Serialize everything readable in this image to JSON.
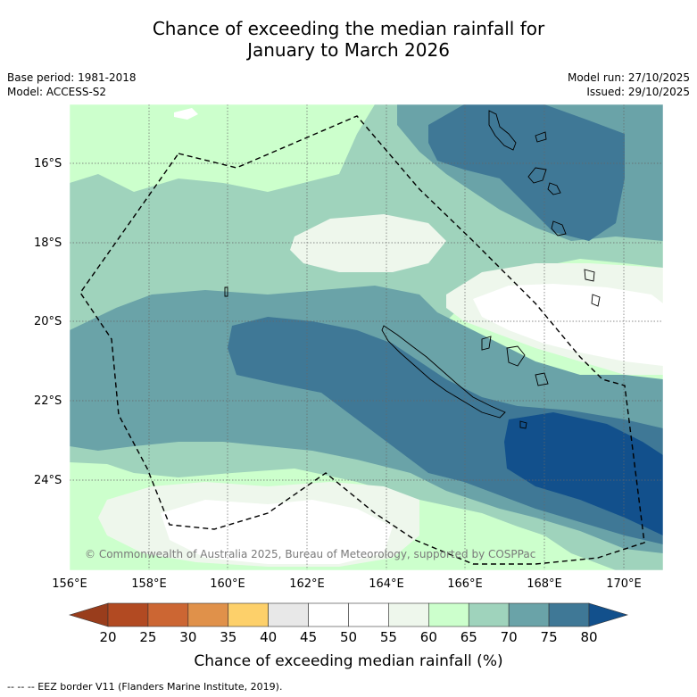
{
  "title": {
    "line1": "Chance of exceeding the median rainfall for",
    "line2": "January to March 2026"
  },
  "meta_left": {
    "base_period": "Base period: 1981-2018",
    "model": "Model: ACCESS-S2"
  },
  "meta_right": {
    "model_run": "Model run: 27/10/2025",
    "issued": "Issued: 29/10/2025"
  },
  "map": {
    "lat_labels": [
      "16°S",
      "18°S",
      "20°S",
      "22°S",
      "24°S"
    ],
    "lon_labels": [
      "156°E",
      "158°E",
      "160°E",
      "162°E",
      "164°E",
      "166°E",
      "168°E",
      "170°E"
    ],
    "copyright": "© Commonwealth of Australia 2025, Bureau of Meteorology, supported by COSPPac"
  },
  "colorbar": {
    "ticks": [
      "20",
      "25",
      "30",
      "35",
      "40",
      "45",
      "50",
      "55",
      "60",
      "65",
      "70",
      "75",
      "80"
    ],
    "colors": [
      "#b24a22",
      "#cc6633",
      "#e0914a",
      "#fdd06a",
      "#e8e8e8",
      "#ffffff",
      "#ffffff",
      "#eef7ec",
      "#ccffcc",
      "#9fd3bc",
      "#6aa3a8",
      "#3f7896"
    ],
    "low_extend_color": "#993d1c",
    "high_extend_color": "#12508c",
    "label": "Chance of exceeding median rainfall (%)"
  },
  "legend": {
    "eez_line": "--  --  -- EEZ border V11 (Flanders Marine Institute, 2019)."
  }
}
